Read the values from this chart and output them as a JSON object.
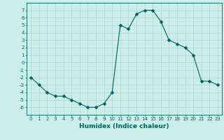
{
  "x": [
    0,
    1,
    2,
    3,
    4,
    5,
    6,
    7,
    8,
    9,
    10,
    11,
    12,
    13,
    14,
    15,
    16,
    17,
    18,
    19,
    20,
    21,
    22,
    23
  ],
  "y": [
    -2,
    -3,
    -4,
    -4.5,
    -4.5,
    -5,
    -5.5,
    -6,
    -6,
    -5.5,
    -4,
    5,
    4.5,
    6.5,
    7,
    7,
    5.5,
    3,
    2.5,
    2,
    1,
    -2.5,
    -2.5,
    -3
  ],
  "xlabel": "Humidex (Indice chaleur)",
  "ylim": [
    -7,
    8
  ],
  "xlim": [
    -0.5,
    23.5
  ],
  "yticks": [
    7,
    6,
    5,
    4,
    3,
    2,
    1,
    0,
    -1,
    -2,
    -3,
    -4,
    -5,
    -6
  ],
  "xticks": [
    0,
    1,
    2,
    3,
    4,
    5,
    6,
    7,
    8,
    9,
    10,
    11,
    12,
    13,
    14,
    15,
    16,
    17,
    18,
    19,
    20,
    21,
    22,
    23
  ],
  "line_color": "#006060",
  "marker_size": 2.5,
  "bg_color": "#cceee8",
  "grid_color": "#aad4ce",
  "tick_fontsize": 5,
  "xlabel_fontsize": 6.5
}
